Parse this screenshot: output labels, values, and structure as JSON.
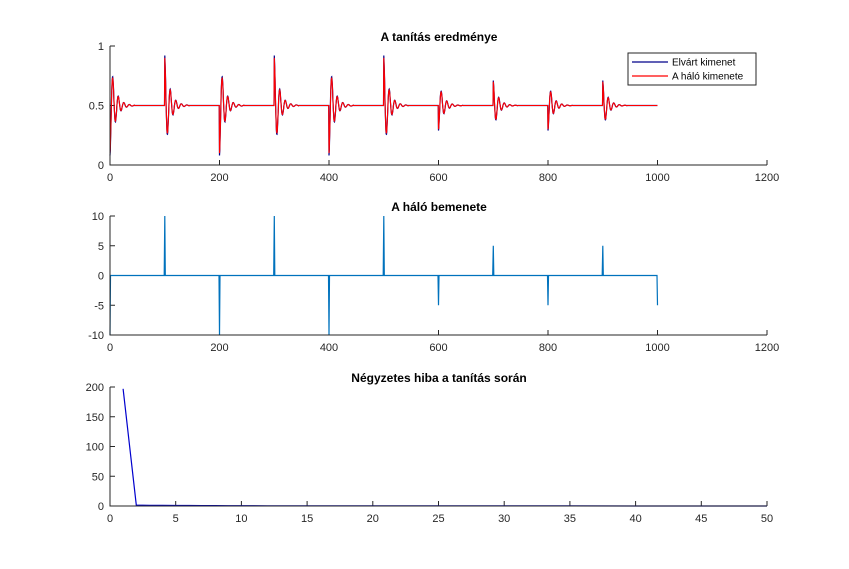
{
  "chart_data": [
    {
      "type": "line",
      "title": "A tanítás eredménye",
      "xlim": [
        0,
        1200
      ],
      "ylim": [
        0,
        1
      ],
      "xticks": [
        0,
        200,
        400,
        600,
        800,
        1000,
        1200
      ],
      "yticks": [
        0,
        0.5,
        1
      ],
      "xtick_labels": [
        "0",
        "200",
        "400",
        "600",
        "800",
        "1000",
        "1200"
      ],
      "ytick_labels": [
        "0",
        "0.5",
        "1"
      ],
      "legend_position": "top-right",
      "baseline": 0.5,
      "impulses": [
        {
          "x": 0,
          "amp": -10
        },
        {
          "x": 100,
          "amp": 10
        },
        {
          "x": 200,
          "amp": -10
        },
        {
          "x": 300,
          "amp": 10
        },
        {
          "x": 400,
          "amp": -10
        },
        {
          "x": 500,
          "amp": 10
        },
        {
          "x": 600,
          "amp": -5
        },
        {
          "x": 700,
          "amp": 5
        },
        {
          "x": 800,
          "amp": -5
        },
        {
          "x": 900,
          "amp": 5
        }
      ],
      "x_end": 1000,
      "series": [
        {
          "name": "Elvárt kimenet",
          "color": "#00008b"
        },
        {
          "name": "A háló kimenete",
          "color": "#ff0000"
        }
      ]
    },
    {
      "type": "line",
      "title": "A háló bemenete",
      "xlim": [
        0,
        1200
      ],
      "ylim": [
        -10,
        10
      ],
      "xticks": [
        0,
        200,
        400,
        600,
        800,
        1000,
        1200
      ],
      "yticks": [
        -10,
        -5,
        0,
        5,
        10
      ],
      "xtick_labels": [
        "0",
        "200",
        "400",
        "600",
        "800",
        "1000",
        "1200"
      ],
      "ytick_labels": [
        "-10",
        "-5",
        "0",
        "5",
        "10"
      ],
      "series": [
        {
          "color": "#0072bd",
          "points": [
            [
              0,
              -10
            ],
            [
              1,
              0
            ],
            [
              99,
              0
            ],
            [
              100,
              10
            ],
            [
              101,
              0
            ],
            [
              199,
              0
            ],
            [
              200,
              -10
            ],
            [
              201,
              0
            ],
            [
              299,
              0
            ],
            [
              300,
              10
            ],
            [
              301,
              0
            ],
            [
              399,
              0
            ],
            [
              400,
              -10
            ],
            [
              401,
              0
            ],
            [
              499,
              0
            ],
            [
              500,
              10
            ],
            [
              501,
              0
            ],
            [
              599,
              0
            ],
            [
              600,
              -5
            ],
            [
              601,
              0
            ],
            [
              699,
              0
            ],
            [
              700,
              5
            ],
            [
              701,
              0
            ],
            [
              799,
              0
            ],
            [
              800,
              -5
            ],
            [
              801,
              0
            ],
            [
              899,
              0
            ],
            [
              900,
              5
            ],
            [
              901,
              0
            ],
            [
              999,
              0
            ],
            [
              1000,
              -5
            ]
          ]
        }
      ]
    },
    {
      "type": "line",
      "title": "Négyzetes hiba a tanítás során",
      "xlim": [
        0,
        50
      ],
      "ylim": [
        0,
        200
      ],
      "xticks": [
        0,
        5,
        10,
        15,
        20,
        25,
        30,
        35,
        40,
        45,
        50
      ],
      "yticks": [
        0,
        50,
        100,
        150,
        200
      ],
      "xtick_labels": [
        "0",
        "5",
        "10",
        "15",
        "20",
        "25",
        "30",
        "35",
        "40",
        "45",
        "50"
      ],
      "ytick_labels": [
        "0",
        "50",
        "100",
        "150",
        "200"
      ],
      "series": [
        {
          "color": "#0000cd",
          "points": [
            [
              1,
              197
            ],
            [
              2,
              1.5
            ],
            [
              3,
              1.2
            ],
            [
              4,
              1.0
            ],
            [
              5,
              0.9
            ],
            [
              6,
              0.8
            ],
            [
              7,
              0.7
            ],
            [
              8,
              0.6
            ],
            [
              9,
              0.5
            ],
            [
              10,
              0.5
            ],
            [
              12,
              0.4
            ],
            [
              15,
              0.3
            ],
            [
              20,
              0.2
            ],
            [
              25,
              0.15
            ],
            [
              30,
              0.1
            ],
            [
              35,
              0.1
            ],
            [
              40,
              0.05
            ],
            [
              45,
              0.05
            ],
            [
              50,
              0.05
            ]
          ]
        }
      ]
    }
  ]
}
